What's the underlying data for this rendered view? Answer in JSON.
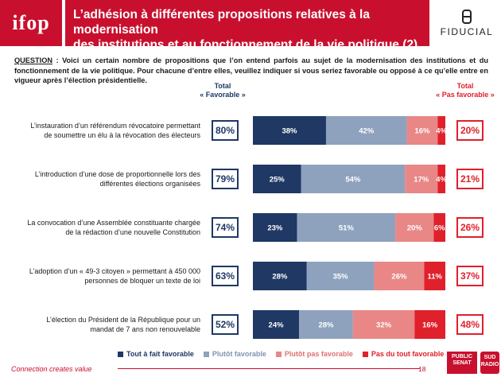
{
  "header": {
    "logo": "ifop",
    "title_line1": "L’adhésion à différentes propositions relatives à la modernisation",
    "title_line2": "des institutions et au fonctionnement de la vie politique (2)",
    "partner": "FIDUCIAL"
  },
  "question": {
    "label": "QUESTION",
    "text": " : Voici un certain nombre de propositions que l’on entend parfois au sujet de la modernisation des institutions et du fonctionnement de la vie politique. Pour chacune d’entre elles, veuillez indiquer si vous seriez favorable ou opposé à ce qu’elle entre en vigueur après l’élection présidentielle."
  },
  "columns": {
    "total_fav_line1": "Total",
    "total_fav_line2": "« Favorable »",
    "total_pas_line1": "Total",
    "total_pas_line2": "« Pas favorable »"
  },
  "colors": {
    "tout_a_fait": "#1f3864",
    "plutot": "#8ea2be",
    "plutot_pas": "#e98787",
    "pas_du_tout": "#e0202b",
    "brand_red": "#c8102e"
  },
  "chart_data": {
    "type": "bar",
    "orientation": "horizontal",
    "stacked": true,
    "percent": true,
    "legend_position": "bottom",
    "categories": [
      "L’instauration d’un référendum révocatoire permettant de soumettre un élu à la révocation des électeurs",
      "L’introduction d’une dose de proportionnelle lors des différentes élections organisées",
      "La convocation d’une Assemblée constituante chargée de la rédaction d’une nouvelle Constitution",
      "L’adoption d’un « 49-3 citoyen » permettant à 450 000 personnes de bloquer un texte de loi",
      "L’élection du Président de la République pour un mandat de 7 ans non renouvelable"
    ],
    "category_lines": [
      [
        "L’instauration d’un référendum révocatoire permettant",
        "de soumettre un élu à la révocation des électeurs"
      ],
      [
        "L’introduction d’une dose de proportionnelle lors des",
        "différentes élections organisées"
      ],
      [
        "La convocation d’une Assemblée constituante chargée",
        "de la rédaction d’une nouvelle Constitution"
      ],
      [
        "L’adoption d’un « 49-3 citoyen » permettant à 450 000",
        "personnes de bloquer un texte de loi"
      ],
      [
        "L’élection du Président de la République pour un",
        "mandat de 7 ans non renouvelable"
      ]
    ],
    "series": [
      {
        "name": "Tout à fait favorable",
        "values": [
          38,
          25,
          23,
          28,
          24
        ]
      },
      {
        "name": "Plutôt favorable",
        "values": [
          42,
          54,
          51,
          35,
          28
        ]
      },
      {
        "name": "Plutôt pas favorable",
        "values": [
          16,
          17,
          20,
          26,
          32
        ]
      },
      {
        "name": "Pas du tout favorable",
        "values": [
          4,
          4,
          6,
          11,
          16
        ]
      }
    ],
    "total_favorable": [
      80,
      79,
      74,
      63,
      52
    ],
    "total_pas_favorable": [
      20,
      21,
      26,
      37,
      48
    ]
  },
  "legend": [
    "Tout à fait favorable",
    "Plutôt favorable",
    "Plutôt pas favorable",
    "Pas du tout favorable"
  ],
  "footer": {
    "tagline": "Connection creates value",
    "page": "18",
    "logo_ps_line1": "PUBLIC",
    "logo_ps_line2": "SENAT",
    "logo_sud_line1": "SUD",
    "logo_sud_line2": "RADIO"
  }
}
